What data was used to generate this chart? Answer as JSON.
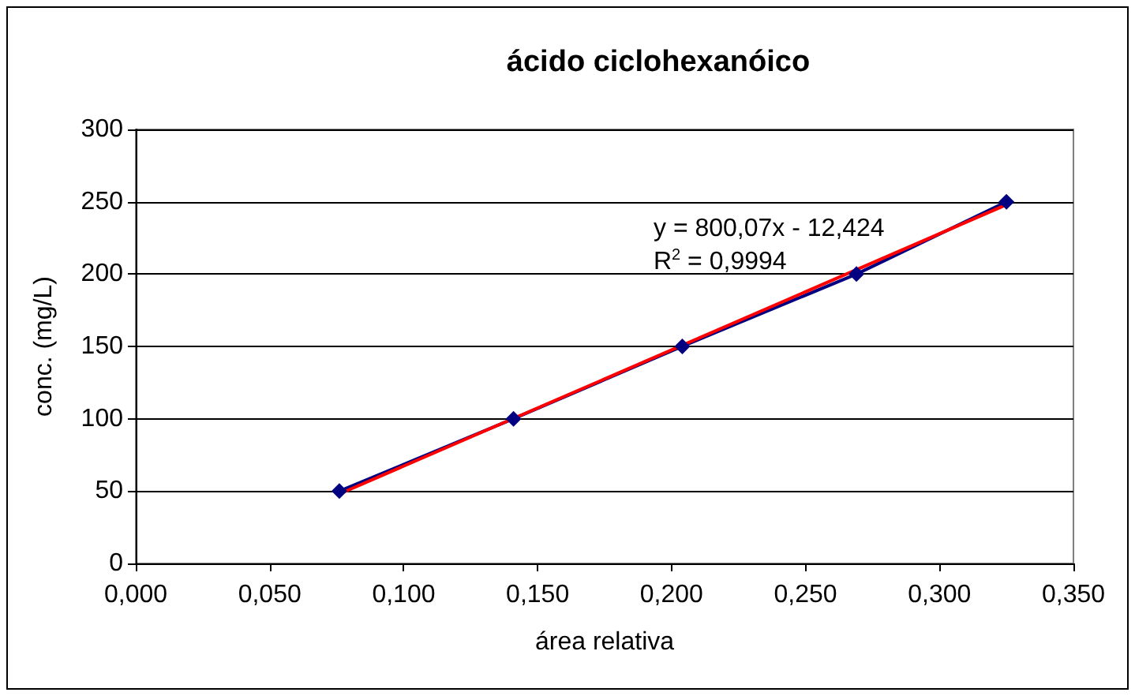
{
  "chart_data": {
    "type": "line",
    "title": "ácido ciclohexanóico",
    "xlabel": "área relativa",
    "ylabel": "conc. (mg/L)",
    "annotations": [
      "y = 800,07x - 12,424",
      "R$^{2}$ = 0,9994"
    ],
    "xlim": [
      0,
      0.35
    ],
    "xticks": [
      {
        "value": 0,
        "label": "0,000"
      },
      {
        "value": 0.05,
        "label": "0,050"
      },
      {
        "value": 0.1,
        "label": "0,100"
      },
      {
        "value": 0.15,
        "label": "0,150"
      },
      {
        "value": 0.2,
        "label": "0,200"
      },
      {
        "value": 0.25,
        "label": "0,250"
      },
      {
        "value": 0.3,
        "label": "0,300"
      },
      {
        "value": 0.35,
        "label": "0,350"
      }
    ],
    "ylim": [
      0,
      300
    ],
    "yticks": [
      0,
      50,
      100,
      150,
      200,
      250,
      300
    ],
    "grid": "y",
    "series": [
      {
        "color": "#000080",
        "marker": "diamond",
        "x": [
          0.076,
          0.141,
          0.204,
          0.269,
          0.325
        ],
        "values": [
          50,
          100,
          150,
          200,
          250
        ]
      },
      {
        "color": "#ff0000",
        "marker": "none",
        "x": [
          0.076,
          0.325
        ],
        "values": [
          48,
          248
        ]
      }
    ]
  }
}
